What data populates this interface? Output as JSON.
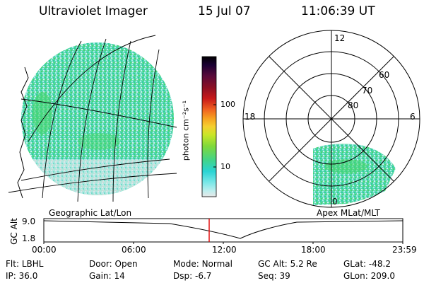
{
  "header": {
    "title": "Ultraviolet Imager",
    "date": "15 Jul 07",
    "time": "11:06:39 UT"
  },
  "left_panel": {
    "label": "Geographic Lat/Lon"
  },
  "colorbar": {
    "unit_label": "photon cm⁻²s⁻¹",
    "ticks": [
      "100",
      "10"
    ],
    "colors": [
      "#000000",
      "#1a0033",
      "#5a0a3a",
      "#8a0f24",
      "#c81919",
      "#f06420",
      "#f6a020",
      "#f5d030",
      "#c8e628",
      "#7fd83a",
      "#42d48a",
      "#2ad4d4",
      "#7be8e8",
      "#bfeeee",
      "#e8e8e8"
    ]
  },
  "right_panel": {
    "label": "Apex MLat/MLT",
    "mlt_labels": [
      "12",
      "18",
      "6",
      "0"
    ],
    "mlat_labels": [
      "60",
      "70",
      "80"
    ]
  },
  "timeline": {
    "axis_label": "GC Alt",
    "y_labels": [
      "9.0",
      "1.8"
    ],
    "time_ticks": [
      "00:00",
      "06:00",
      "12:00",
      "18:00",
      "23:59"
    ],
    "current_marker_color": "#e00000"
  },
  "footer": {
    "row1": [
      {
        "key": "Flt:",
        "val": "LBHL"
      },
      {
        "key": "Door:",
        "val": "Open"
      },
      {
        "key": "Mode:",
        "val": "Normal"
      },
      {
        "key": "GC Alt:",
        "val": "5.2 Re"
      },
      {
        "key": "GLat:",
        "val": "-48.2"
      }
    ],
    "row2": [
      {
        "key": "IP:",
        "val": "36.0"
      },
      {
        "key": "Gain:",
        "val": "14"
      },
      {
        "key": "Dsp:",
        "val": "-6.7"
      },
      {
        "key": "Seq:",
        "val": "39"
      },
      {
        "key": "GLon:",
        "val": "209.0"
      }
    ]
  }
}
